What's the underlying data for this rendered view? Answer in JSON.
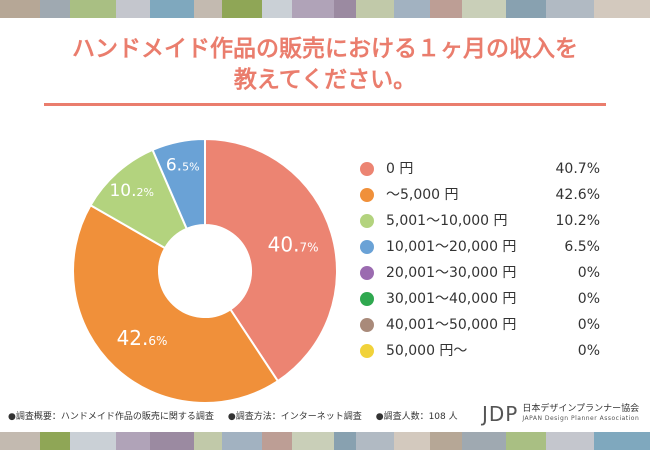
{
  "header_stripe_colors": [
    "#b6a796",
    "#9fa9b1",
    "#a9bf83",
    "#c4c6cd",
    "#7fa8be",
    "#c3bab0",
    "#8fa656",
    "#cad0d6",
    "#b0a3b8",
    "#9b8aa1",
    "#c1c9a9",
    "#a2b2c1",
    "#bd9e95",
    "#c9cfb8",
    "#88a1b0",
    "#b1bac3",
    "#d3c9be"
  ],
  "title_line1": "ハンドメイド作品の販売における１ヶ月の収入を",
  "title_line2": "教えてください。",
  "chart_data": {
    "type": "pie",
    "donut": true,
    "categories": [
      "0 円",
      "～5,000 円",
      "5,001～10,000 円",
      "10,001～20,000 円",
      "20,001～30,000 円",
      "30,001～40,000 円",
      "40,001～50,000 円",
      "50,000 円～"
    ],
    "values": [
      40.7,
      42.6,
      10.2,
      6.5,
      0,
      0,
      0,
      0
    ],
    "value_labels": [
      "40.7%",
      "42.6%",
      "10.2%",
      "6.5%",
      "0%",
      "0%",
      "0%",
      "0%"
    ],
    "colors": [
      "#ec8472",
      "#f0903a",
      "#b3d37e",
      "#6aa2d6",
      "#9b6bb0",
      "#2fa84f",
      "#a98a7a",
      "#f1d23a"
    ],
    "slice_labels": [
      {
        "main": "40.",
        "small": "7%"
      },
      {
        "main": "42.",
        "small": "6%"
      },
      {
        "main": "10.",
        "small": "2%"
      },
      {
        "main": "6.",
        "small": "5%"
      }
    ],
    "title": "ハンドメイド作品の販売における１ヶ月の収入を教えてください。",
    "legend_position": "right"
  },
  "footer": {
    "item1": "●調査概要：ハンドメイド作品の販売に関する調査",
    "item2": "●調査方法：インターネット調査",
    "item3": "●調査人数：108 人"
  },
  "logo": {
    "mark": "JDP",
    "jp": "日本デザインプランナー協会",
    "en": "JAPAN Design Planner Association"
  }
}
